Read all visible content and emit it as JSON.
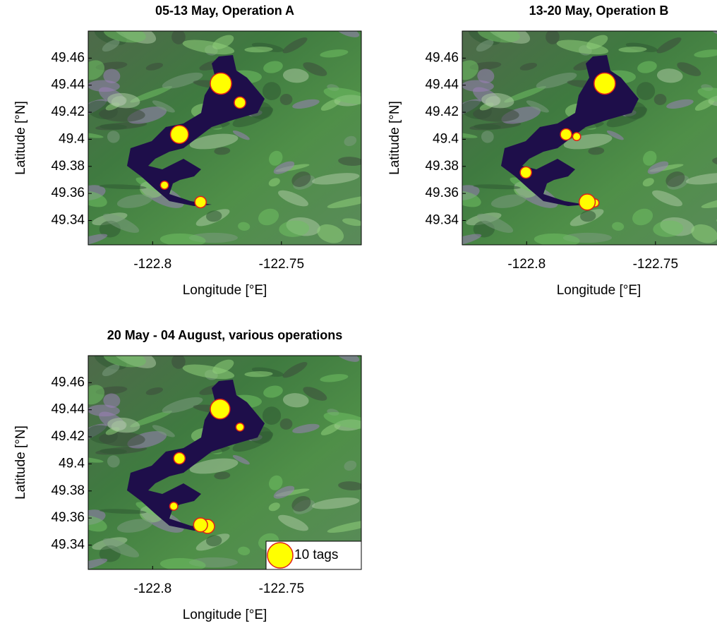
{
  "chart_data": [
    {
      "type": "scatter",
      "title": "05-13 May, Operation A",
      "xlabel": "Longitude [°E]",
      "ylabel": "Latitude [°N]",
      "xlim": [
        -122.825,
        -122.719
      ],
      "ylim": [
        49.322,
        49.48
      ],
      "xticks": [
        -122.8,
        -122.75
      ],
      "yticks": [
        49.34,
        49.36,
        49.38,
        49.4,
        49.42,
        49.44,
        49.46
      ],
      "color": "#ffff00",
      "edgecolor": "#e0201a",
      "x": [
        -122.7735,
        -122.7661,
        -122.7896,
        -122.7954,
        -122.7814
      ],
      "values": [
        49.4412,
        49.4271,
        49.4036,
        49.3661,
        49.3536
      ],
      "sizes": [
        7,
        2,
        5,
        1,
        2
      ]
    },
    {
      "type": "scatter",
      "title": "13-20 May, Operation B",
      "xlabel": "Longitude [°E]",
      "ylabel": "Latitude [°N]",
      "xlim": [
        -122.825,
        -122.719
      ],
      "ylim": [
        49.322,
        49.48
      ],
      "xticks": [
        -122.8,
        -122.75
      ],
      "yticks": [
        49.34,
        49.36,
        49.38,
        49.4,
        49.42,
        49.44,
        49.46
      ],
      "color": "#ffff00",
      "edgecolor": "#e0201a",
      "x": [
        -122.7697,
        -122.7847,
        -122.7806,
        -122.8003,
        -122.7735,
        -122.7765
      ],
      "values": [
        49.4412,
        49.4036,
        49.402,
        49.3755,
        49.353,
        49.3536
      ],
      "sizes": [
        7,
        2,
        1,
        2,
        1,
        4
      ]
    },
    {
      "type": "scatter",
      "title": "20 May - 04 August, various operations",
      "xlabel": "Longitude [°E]",
      "ylabel": "Latitude [°N]",
      "xlim": [
        -122.825,
        -122.719
      ],
      "ylim": [
        49.322,
        49.48
      ],
      "xticks": [
        -122.8,
        -122.75
      ],
      "yticks": [
        49.34,
        49.36,
        49.38,
        49.4,
        49.42,
        49.44,
        49.46
      ],
      "color": "#ffff00",
      "edgecolor": "#e0201a",
      "x": [
        -122.7738,
        -122.7661,
        -122.7896,
        -122.7918,
        -122.7787,
        -122.7814
      ],
      "values": [
        49.4405,
        49.4272,
        49.4041,
        49.3687,
        49.3538,
        49.3549
      ],
      "sizes": [
        6,
        1,
        2,
        1,
        3,
        3
      ],
      "size_legend": {
        "value": 10,
        "label": "10 tags"
      }
    }
  ]
}
